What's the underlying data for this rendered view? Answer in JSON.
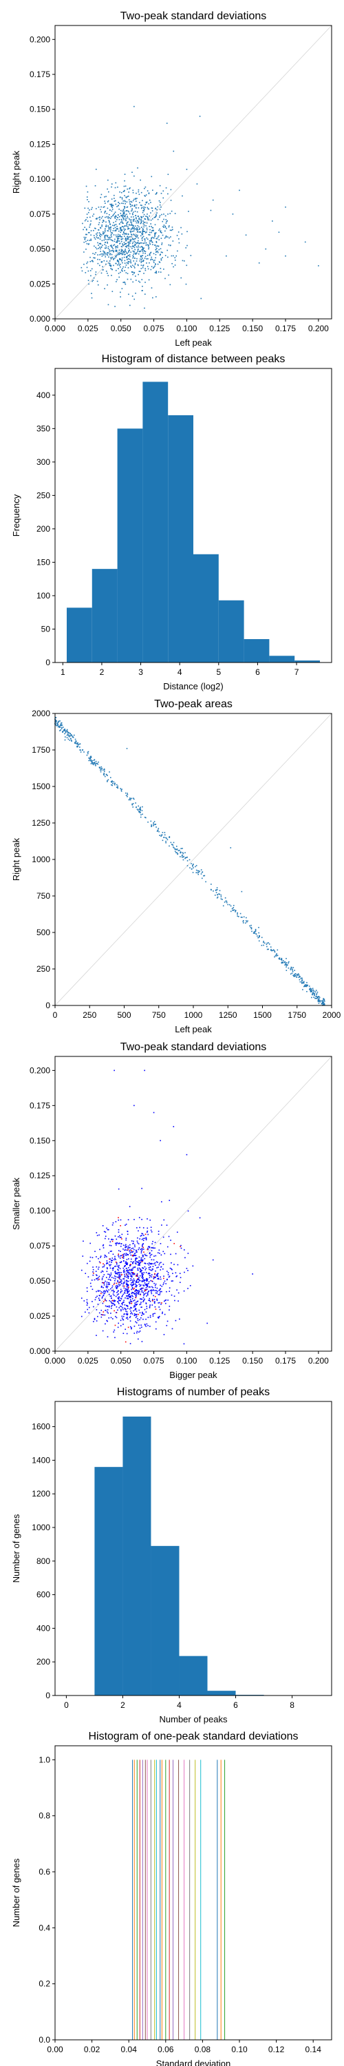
{
  "chart_data": [
    {
      "type": "scatter",
      "title": "Two-peak standard deviations",
      "xlabel": "Left peak",
      "ylabel": "Right peak",
      "xlim": [
        0.0,
        0.21
      ],
      "ylim": [
        0.0,
        0.21
      ],
      "xticks": [
        "0.000",
        "0.025",
        "0.050",
        "0.075",
        "0.100",
        "0.125",
        "0.150",
        "0.175",
        "0.200"
      ],
      "yticks": [
        "0.000",
        "0.025",
        "0.050",
        "0.075",
        "0.100",
        "0.125",
        "0.150",
        "0.175",
        "0.200"
      ],
      "diagonal": true,
      "color": "#1f77b4",
      "cloud": {
        "n": 1300,
        "x_center": 0.055,
        "x_spread": 0.018,
        "y_center": 0.058,
        "y_spread": 0.017
      },
      "outliers": [
        [
          0.13,
          0.045
        ],
        [
          0.145,
          0.06
        ],
        [
          0.16,
          0.05
        ],
        [
          0.175,
          0.045
        ],
        [
          0.2,
          0.038
        ],
        [
          0.17,
          0.062
        ],
        [
          0.14,
          0.092
        ],
        [
          0.12,
          0.085
        ],
        [
          0.155,
          0.04
        ],
        [
          0.09,
          0.12
        ],
        [
          0.085,
          0.14
        ],
        [
          0.06,
          0.152
        ],
        [
          0.1,
          0.107
        ],
        [
          0.175,
          0.08
        ],
        [
          0.19,
          0.055
        ],
        [
          0.11,
          0.145
        ],
        [
          0.135,
          0.075
        ],
        [
          0.165,
          0.07
        ]
      ],
      "grid": false
    },
    {
      "type": "bar",
      "title": "Histogram of distance between peaks",
      "xlabel": "Distance (log2)",
      "ylabel": "Frequency",
      "xlim": [
        0.8,
        7.9
      ],
      "ylim": [
        0,
        440
      ],
      "xticks": [
        "1",
        "2",
        "3",
        "4",
        "5",
        "6",
        "7"
      ],
      "yticks": [
        "0",
        "50",
        "100",
        "150",
        "200",
        "250",
        "300",
        "350",
        "400"
      ],
      "bin_edges": [
        1.1,
        1.75,
        2.4,
        3.05,
        3.7,
        4.35,
        5.0,
        5.65,
        6.3,
        6.95,
        7.6
      ],
      "values": [
        82,
        140,
        350,
        420,
        370,
        162,
        93,
        35,
        10,
        3
      ],
      "color": "#1f77b4",
      "grid": false
    },
    {
      "type": "scatter",
      "title": "Two-peak areas",
      "xlabel": "Left peak",
      "ylabel": "Right peak",
      "xlim": [
        0,
        2000
      ],
      "ylim": [
        0,
        2000
      ],
      "xticks": [
        "0",
        "250",
        "500",
        "750",
        "1000",
        "1250",
        "1500",
        "1750",
        "2000"
      ],
      "yticks": [
        "0",
        "250",
        "500",
        "750",
        "1000",
        "1250",
        "1500",
        "1750",
        "2000"
      ],
      "diagonal": true,
      "color": "#1f77b4",
      "line_total": 1950,
      "n": 650,
      "outliers": [
        [
          520,
          1760
        ],
        [
          1270,
          1080
        ],
        [
          1350,
          780
        ],
        [
          430,
          1520
        ],
        [
          180,
          1750
        ]
      ],
      "grid": false
    },
    {
      "type": "scatter",
      "title": "Two-peak standard deviations",
      "xlabel": "Bigger peak",
      "ylabel": "Smaller peak",
      "xlim": [
        0.0,
        0.21
      ],
      "ylim": [
        0.0,
        0.21
      ],
      "xticks": [
        "0.000",
        "0.025",
        "0.050",
        "0.075",
        "0.100",
        "0.125",
        "0.150",
        "0.175",
        "0.200"
      ],
      "yticks": [
        "0.000",
        "0.025",
        "0.050",
        "0.075",
        "0.100",
        "0.125",
        "0.150",
        "0.175",
        "0.200"
      ],
      "diagonal": true,
      "colors": [
        "#0000ff",
        "#ff0000"
      ],
      "cloud": {
        "n": 1300,
        "x_center": 0.058,
        "x_spread": 0.016,
        "y_center": 0.05,
        "y_spread": 0.018
      },
      "outliers": [
        [
          0.068,
          0.2
        ],
        [
          0.075,
          0.17
        ],
        [
          0.06,
          0.175
        ],
        [
          0.045,
          0.2
        ],
        [
          0.09,
          0.16
        ],
        [
          0.1,
          0.14
        ],
        [
          0.15,
          0.055
        ],
        [
          0.12,
          0.065
        ],
        [
          0.11,
          0.095
        ],
        [
          0.08,
          0.15
        ]
      ],
      "grid": false
    },
    {
      "type": "bar",
      "title": "Histograms of number of peaks",
      "xlabel": "Number of peaks",
      "ylabel": "Number of genes",
      "xlim": [
        -0.4,
        9.4
      ],
      "ylim": [
        0,
        1750
      ],
      "xticks": [
        "0",
        "2",
        "4",
        "6",
        "8"
      ],
      "yticks": [
        "0",
        "200",
        "400",
        "600",
        "800",
        "1000",
        "1200",
        "1400",
        "1600"
      ],
      "bin_edges": [
        1,
        2,
        3,
        4,
        5,
        6,
        7
      ],
      "values": [
        1360,
        1660,
        890,
        235,
        28,
        4
      ],
      "color": "#1f77b4",
      "grid": false
    },
    {
      "type": "bar",
      "title": "Histogram of one-peak standard deviations",
      "xlabel": "Standard deviation",
      "ylabel": "Number of genes",
      "xlim": [
        0.0,
        0.15
      ],
      "ylim": [
        0,
        1.05
      ],
      "xticks": [
        "0.00",
        "0.02",
        "0.04",
        "0.06",
        "0.08",
        "0.10",
        "0.12",
        "0.14"
      ],
      "yticks": [
        "0.0",
        "0.2",
        "0.4",
        "0.6",
        "0.8",
        "1.0"
      ],
      "lines": [
        0.042,
        0.043,
        0.0445,
        0.046,
        0.0475,
        0.049,
        0.05,
        0.052,
        0.054,
        0.055,
        0.057,
        0.058,
        0.06,
        0.062,
        0.064,
        0.067,
        0.07,
        0.073,
        0.076,
        0.079,
        0.088,
        0.09,
        0.092
      ],
      "colors": [
        "#1f77b4",
        "#ff7f0e",
        "#2ca02c",
        "#d62728",
        "#9467bd",
        "#8c564b",
        "#e377c2",
        "#7f7f7f",
        "#bcbd22",
        "#17becf"
      ],
      "grid": false
    }
  ]
}
